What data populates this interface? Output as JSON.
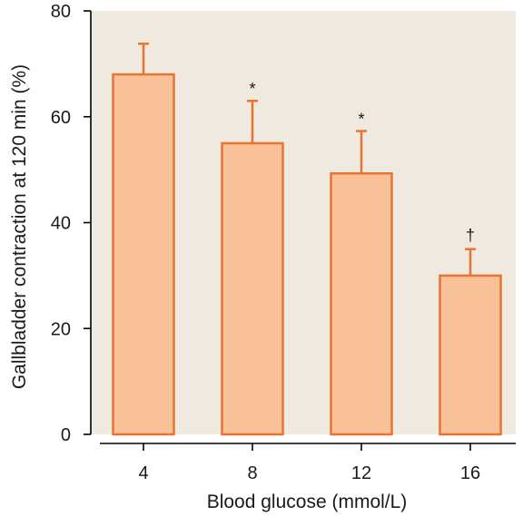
{
  "chart_data": {
    "type": "bar",
    "title": "",
    "xlabel": "Blood glucose (mmol/L)",
    "ylabel": "Gallbladder contraction at 120 min (%)",
    "categories": [
      "4",
      "8",
      "12",
      "16"
    ],
    "values": [
      68,
      55,
      49.3,
      30
    ],
    "error_upper": [
      73.8,
      63,
      57.3,
      35
    ],
    "annotations": [
      "",
      "*",
      "*",
      "†"
    ],
    "ylim": [
      0,
      80
    ],
    "yticks": [
      0,
      20,
      40,
      60,
      80
    ],
    "grid": false,
    "legend": "none",
    "colors": {
      "plot_background": "#efe9df",
      "bar_fill": "#f9c197",
      "bar_stroke": "#e8752f",
      "axis": "#000000"
    }
  }
}
